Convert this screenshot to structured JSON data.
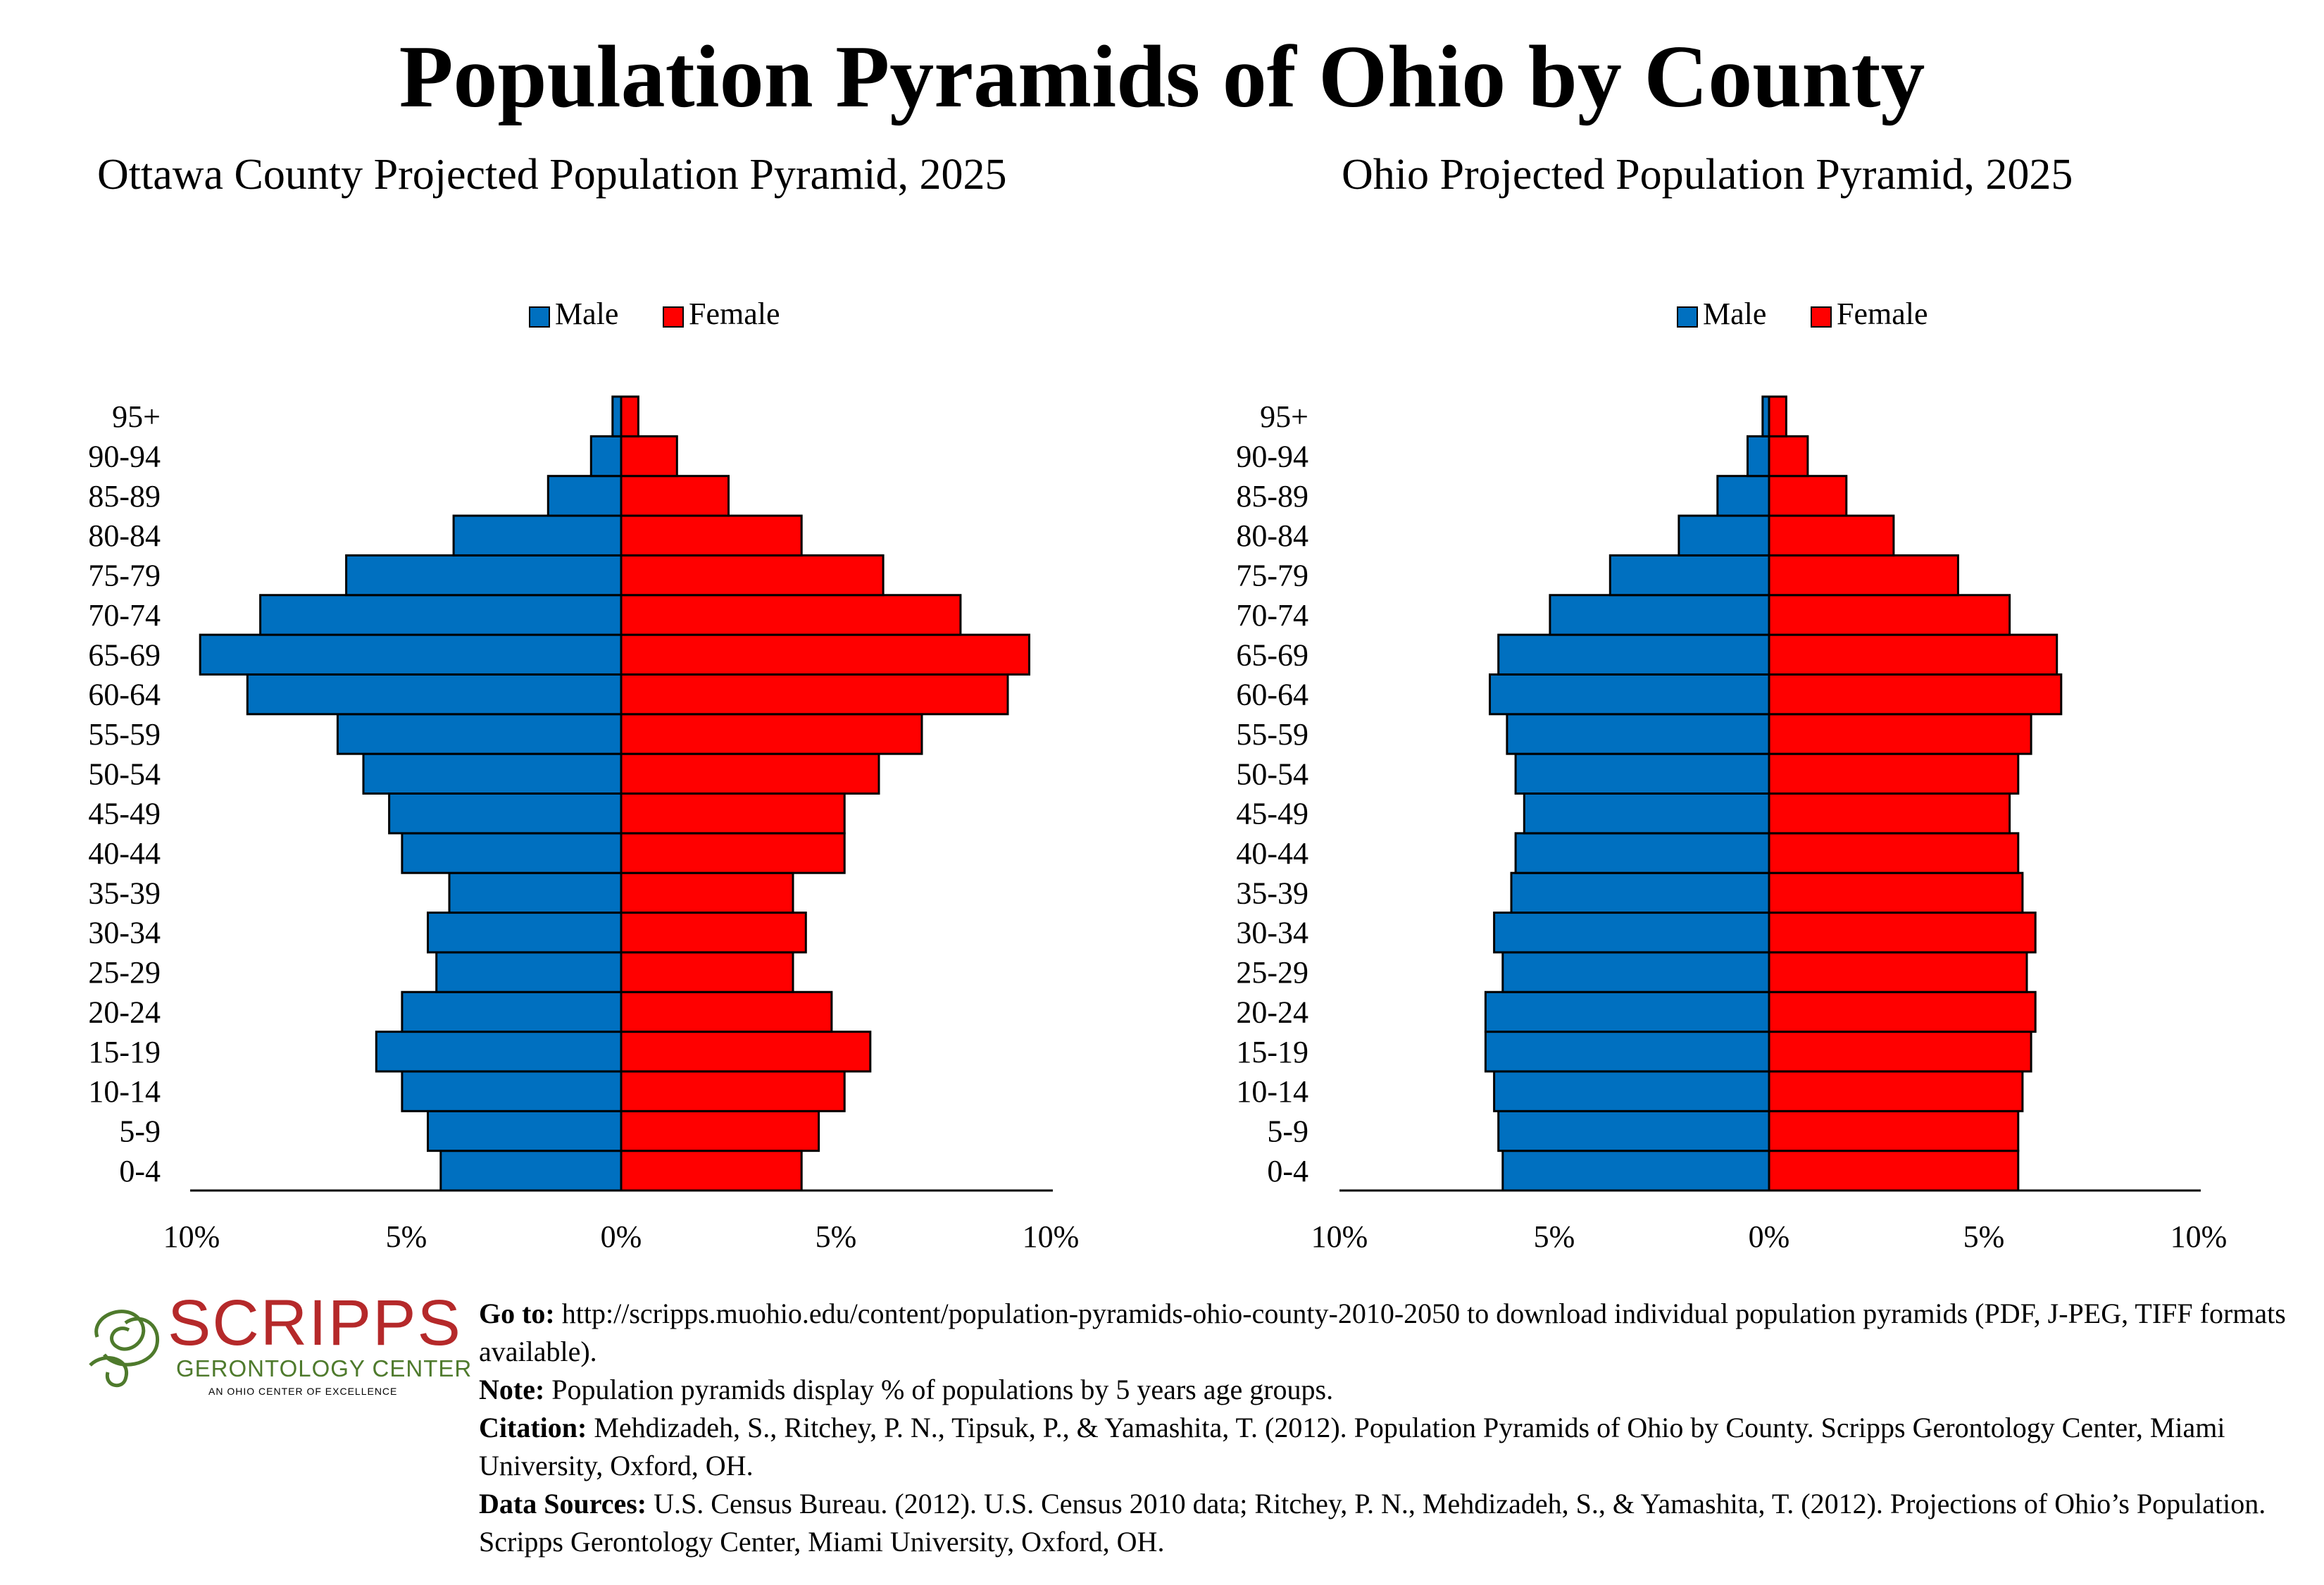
{
  "title": "Population Pyramids of Ohio by County",
  "colors": {
    "male": "#0070c0",
    "female": "#ff0000",
    "logo_red": "#b5292a",
    "logo_green": "#4e7a2c"
  },
  "chart_data": [
    {
      "type": "bar",
      "orientation": "horizontal-pyramid",
      "title": "Ottawa County Projected Population Pyramid, 2025",
      "categories": [
        "0-4",
        "5-9",
        "10-14",
        "15-19",
        "20-24",
        "25-29",
        "30-34",
        "35-39",
        "40-44",
        "45-49",
        "50-54",
        "55-59",
        "60-64",
        "65-69",
        "70-74",
        "75-79",
        "80-84",
        "85-89",
        "90-94",
        "95+"
      ],
      "series": [
        {
          "name": "Male",
          "values": [
            4.2,
            4.5,
            5.1,
            5.7,
            5.1,
            4.3,
            4.5,
            4.0,
            5.1,
            5.4,
            6.0,
            6.6,
            8.7,
            9.8,
            8.4,
            6.4,
            3.9,
            1.7,
            0.7,
            0.2
          ]
        },
        {
          "name": "Female",
          "values": [
            4.2,
            4.6,
            5.2,
            5.8,
            4.9,
            4.0,
            4.3,
            4.0,
            5.2,
            5.2,
            6.0,
            7.0,
            9.0,
            9.5,
            7.9,
            6.1,
            4.2,
            2.5,
            1.3,
            0.4
          ]
        }
      ],
      "xlim": [
        -10,
        10
      ],
      "xticks": [
        "10%",
        "5%",
        "0%",
        "5%",
        "10%"
      ],
      "legend": "top-center"
    },
    {
      "type": "bar",
      "orientation": "horizontal-pyramid",
      "title": "Ohio Projected Population Pyramid, 2025",
      "categories": [
        "0-4",
        "5-9",
        "10-14",
        "15-19",
        "20-24",
        "25-29",
        "30-34",
        "35-39",
        "40-44",
        "45-49",
        "50-54",
        "55-59",
        "60-64",
        "65-69",
        "70-74",
        "75-79",
        "80-84",
        "85-89",
        "90-94",
        "95+"
      ],
      "series": [
        {
          "name": "Male",
          "values": [
            6.2,
            6.3,
            6.4,
            6.6,
            6.6,
            6.2,
            6.4,
            6.0,
            5.9,
            5.7,
            5.9,
            6.1,
            6.5,
            6.3,
            5.1,
            3.7,
            2.1,
            1.2,
            0.5,
            0.15
          ]
        },
        {
          "name": "Female",
          "values": [
            5.8,
            5.8,
            5.9,
            6.1,
            6.2,
            6.0,
            6.2,
            5.9,
            5.8,
            5.6,
            5.8,
            6.1,
            6.8,
            6.7,
            5.6,
            4.4,
            2.9,
            1.8,
            0.9,
            0.4
          ]
        }
      ],
      "xlim": [
        -10,
        10
      ],
      "xticks": [
        "10%",
        "5%",
        "0%",
        "5%",
        "10%"
      ],
      "legend": "top-center"
    }
  ],
  "logo": {
    "word": "SCRIPPS",
    "subtitle": "GERONTOLOGY CENTER",
    "tagline": "AN OHIO CENTER OF EXCELLENCE"
  },
  "notes": {
    "goto_label": "Go to:",
    "goto_text": " http://scripps.muohio.edu/content/population-pyramids-ohio-county-2010-2050 to download individual population pyramids (PDF, J-PEG, TIFF formats available).",
    "note_label": "Note:",
    "note_text": " Population pyramids display % of populations by 5 years age groups.",
    "citation_label": "Citation:",
    "citation_text": " Mehdizadeh, S., Ritchey, P. N., Tipsuk, P., & Yamashita, T. (2012). Population Pyramids of Ohio by County. Scripps Gerontology Center, Miami University, Oxford, OH.",
    "sources_label": "Data Sources:",
    "sources_text": " U.S. Census Bureau. (2012). U.S. Census 2010 data; Ritchey, P. N., Mehdizadeh, S., & Yamashita, T. (2012). Projections of Ohio’s Population. Scripps Gerontology Center, Miami University, Oxford, OH."
  }
}
